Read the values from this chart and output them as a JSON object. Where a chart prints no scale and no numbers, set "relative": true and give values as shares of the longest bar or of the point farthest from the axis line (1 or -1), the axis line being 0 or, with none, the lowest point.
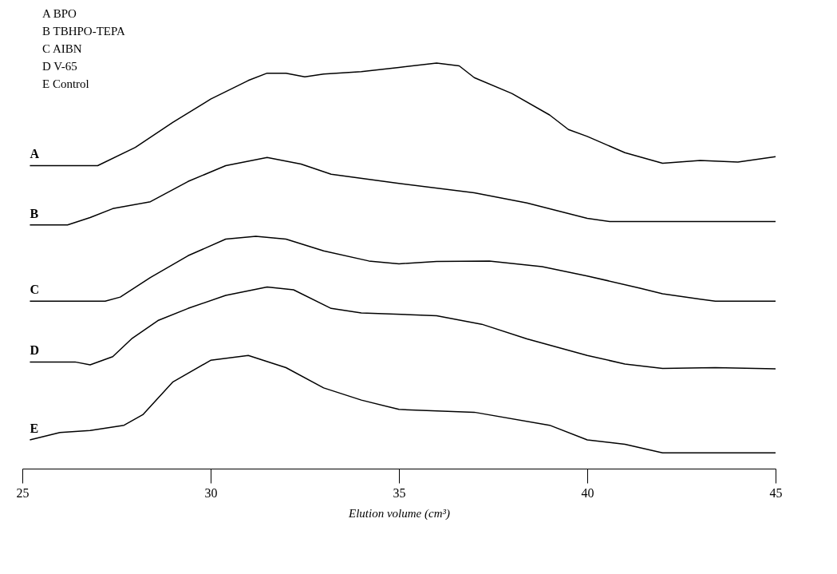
{
  "chart_data": {
    "type": "line",
    "relative": true,
    "xlabel": "Elution volume (cm³)",
    "xlim": [
      25,
      45
    ],
    "xticks": [
      25,
      30,
      35,
      40,
      45
    ],
    "grid": false,
    "marker": "none",
    "line_style": "solid",
    "series": [
      {
        "name": "A",
        "color": "#000000",
        "x": [
          25.2,
          27,
          28,
          29,
          30,
          31,
          31.5,
          32,
          32.5,
          33,
          34,
          35,
          36,
          36.6,
          37,
          38,
          39,
          39.5,
          40,
          41,
          42,
          43,
          44,
          45
        ],
        "values": [
          0.747,
          0.747,
          0.792,
          0.854,
          0.911,
          0.957,
          0.975,
          0.975,
          0.966,
          0.973,
          0.979,
          0.989,
          1,
          0.993,
          0.964,
          0.925,
          0.872,
          0.836,
          0.819,
          0.779,
          0.753,
          0.76,
          0.756,
          0.769
        ]
      },
      {
        "name": "B",
        "color": "#000000",
        "x": [
          25.2,
          26.2,
          26.8,
          27.4,
          28.4,
          29.4,
          30.4,
          31.5,
          32.4,
          33.2,
          35,
          37,
          38.4,
          40,
          40.6,
          45
        ],
        "values": [
          0.601,
          0.601,
          0.619,
          0.641,
          0.658,
          0.708,
          0.747,
          0.767,
          0.751,
          0.726,
          0.703,
          0.68,
          0.655,
          0.617,
          0.609,
          0.609
        ]
      },
      {
        "name": "C",
        "color": "#000000",
        "x": [
          25.2,
          27.2,
          27.6,
          28.4,
          29.4,
          30.4,
          31.2,
          32,
          33,
          34.2,
          35,
          36,
          37.4,
          38.8,
          40,
          41.4,
          42,
          43,
          43.4,
          45
        ],
        "values": [
          0.413,
          0.413,
          0.423,
          0.471,
          0.525,
          0.566,
          0.573,
          0.566,
          0.537,
          0.512,
          0.505,
          0.511,
          0.512,
          0.498,
          0.475,
          0.445,
          0.431,
          0.418,
          0.413,
          0.413
        ]
      },
      {
        "name": "D",
        "color": "#000000",
        "x": [
          25.2,
          26.4,
          26.8,
          27.4,
          27.9,
          28.6,
          29.4,
          30.4,
          31.5,
          32.2,
          33.2,
          34,
          36,
          37.2,
          38.4,
          40,
          41,
          42,
          43.4,
          45
        ],
        "values": [
          0.263,
          0.263,
          0.256,
          0.276,
          0.32,
          0.365,
          0.395,
          0.427,
          0.448,
          0.441,
          0.395,
          0.384,
          0.377,
          0.356,
          0.32,
          0.279,
          0.258,
          0.247,
          0.249,
          0.246
        ]
      },
      {
        "name": "E",
        "color": "#000000",
        "x": [
          25.2,
          26,
          26.8,
          27.7,
          28.2,
          29,
          30,
          31,
          32,
          33,
          34,
          35,
          37,
          39,
          40,
          41,
          42,
          45
        ],
        "values": [
          0.071,
          0.089,
          0.094,
          0.107,
          0.133,
          0.214,
          0.267,
          0.279,
          0.249,
          0.199,
          0.169,
          0.146,
          0.139,
          0.107,
          0.071,
          0.06,
          0.039,
          0.039
        ]
      }
    ],
    "annotations": [
      "A   BPO",
      "B   TBHPO-TEPA",
      "C   AIBN",
      "D   V-65",
      "E   Control"
    ]
  }
}
